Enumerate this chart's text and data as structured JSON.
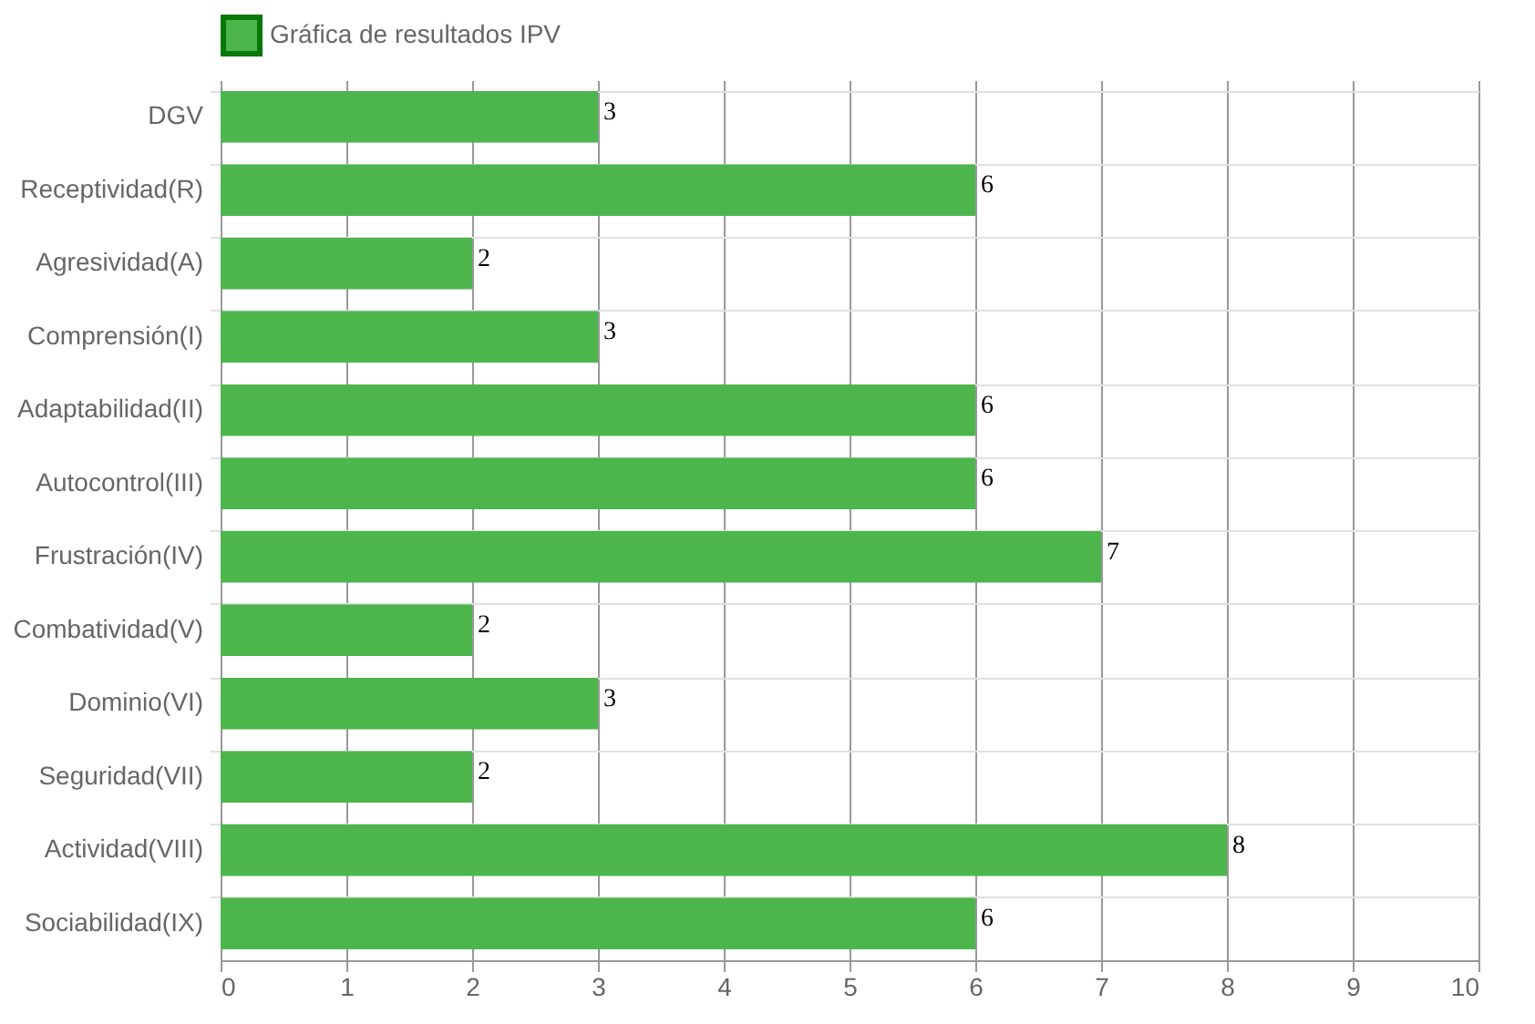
{
  "chart_data": {
    "type": "bar",
    "orientation": "horizontal",
    "categories": [
      "DGV",
      "Receptividad(R)",
      "Agresividad(A)",
      "Comprensión(I)",
      "Adaptabilidad(II)",
      "Autocontrol(III)",
      "Frustración(IV)",
      "Combatividad(V)",
      "Dominio(VI)",
      "Seguridad(VII)",
      "Actividad(VIII)",
      "Sociabilidad(IX)"
    ],
    "series": [
      {
        "name": "Gráfica de resultados IPV",
        "color": "#4cb54c",
        "values": [
          3,
          6,
          2,
          3,
          6,
          6,
          7,
          2,
          3,
          2,
          8,
          6
        ]
      }
    ],
    "xlim": [
      0,
      10
    ],
    "xticks": [
      0,
      1,
      2,
      3,
      4,
      5,
      6,
      7,
      8,
      9,
      10
    ],
    "grid": true,
    "legend": "top",
    "data_labels": true
  }
}
